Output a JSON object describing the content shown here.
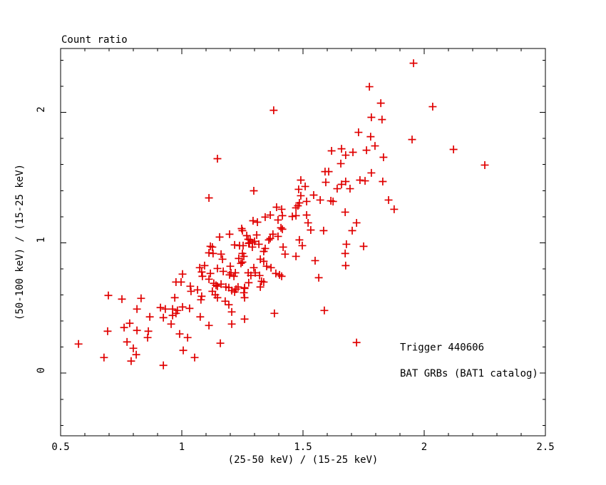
{
  "figure": {
    "title": "Count ratio"
  },
  "chart_data": {
    "type": "scatter",
    "title": "Count ratio",
    "xlabel": "(25-50 keV) / (15-25 keV)",
    "ylabel": "(50-100 keV) / (15-25 keV)",
    "xlim": [
      0.5,
      2.5
    ],
    "ylim": [
      -0.48,
      2.49
    ],
    "grid": false,
    "frame_color": "#000000",
    "x_major_ticks": {
      "values": [
        0.5,
        1,
        1.5,
        2,
        2.5
      ],
      "labels": [
        "0.5",
        "1",
        "1.5",
        "2",
        "2.5"
      ]
    },
    "x_minor_step": 0.1,
    "y_major_ticks": {
      "values": [
        0,
        1,
        2
      ],
      "labels": [
        "0",
        "1",
        "2"
      ]
    },
    "y_minor_step": 0.2,
    "marker": {
      "symbol": "plus",
      "size": 11,
      "color": "#e00000"
    },
    "series": [
      {
        "name": "count-ratio-points",
        "color": "#e00000",
        "points": [
          [
            1.147,
            1.645
          ],
          [
            1.774,
            2.197
          ],
          [
            1.379,
            2.016
          ],
          [
            1.821,
            2.071
          ],
          [
            1.782,
            1.962
          ],
          [
            1.826,
            1.945
          ],
          [
            1.729,
            1.847
          ],
          [
            1.779,
            1.814
          ],
          [
            1.797,
            1.743
          ],
          [
            1.618,
            1.705
          ],
          [
            1.659,
            1.721
          ],
          [
            1.676,
            1.672
          ],
          [
            1.706,
            1.694
          ],
          [
            1.762,
            1.71
          ],
          [
            1.832,
            1.656
          ],
          [
            1.656,
            1.607
          ],
          [
            1.591,
            1.546
          ],
          [
            1.606,
            1.546
          ],
          [
            1.782,
            1.536
          ],
          [
            1.956,
            2.377
          ],
          [
            2.035,
            2.044
          ],
          [
            1.95,
            1.792
          ],
          [
            2.121,
            1.716
          ],
          [
            2.25,
            1.596
          ],
          [
            1.853,
            1.328
          ],
          [
            1.876,
            1.257
          ],
          [
            1.491,
            1.481
          ],
          [
            1.509,
            1.432
          ],
          [
            1.594,
            1.464
          ],
          [
            1.641,
            1.415
          ],
          [
            1.659,
            1.448
          ],
          [
            1.676,
            1.47
          ],
          [
            1.694,
            1.415
          ],
          [
            1.735,
            1.481
          ],
          [
            1.756,
            1.475
          ],
          [
            1.829,
            1.47
          ],
          [
            1.297,
            1.399
          ],
          [
            1.482,
            1.41
          ],
          [
            1.491,
            1.361
          ],
          [
            1.515,
            1.317
          ],
          [
            1.544,
            1.366
          ],
          [
            1.571,
            1.328
          ],
          [
            1.615,
            1.322
          ],
          [
            1.624,
            1.317
          ],
          [
            1.485,
            1.306
          ],
          [
            1.391,
            1.273
          ],
          [
            1.412,
            1.257
          ],
          [
            1.471,
            1.268
          ],
          [
            1.479,
            1.284
          ],
          [
            1.674,
            1.235
          ],
          [
            1.365,
            1.213
          ],
          [
            1.397,
            1.175
          ],
          [
            1.415,
            1.208
          ],
          [
            1.456,
            1.202
          ],
          [
            1.471,
            1.208
          ],
          [
            1.294,
            1.169
          ],
          [
            1.312,
            1.158
          ],
          [
            1.344,
            1.197
          ],
          [
            1.515,
            1.213
          ],
          [
            1.521,
            1.153
          ],
          [
            1.721,
            1.153
          ],
          [
            1.247,
            1.109
          ],
          [
            1.197,
            1.066
          ],
          [
            1.268,
            1.055
          ],
          [
            1.282,
            1.022
          ],
          [
            1.3,
            1.011
          ],
          [
            1.309,
            1.06
          ],
          [
            1.25,
            1.093
          ],
          [
            1.274,
            1.027
          ],
          [
            1.279,
            1.0
          ],
          [
            1.291,
            1.0
          ],
          [
            1.318,
            0.989
          ],
          [
            1.409,
            1.115
          ],
          [
            1.415,
            1.104
          ],
          [
            1.376,
            1.066
          ],
          [
            1.397,
            1.049
          ],
          [
            1.532,
            1.098
          ],
          [
            1.585,
            1.093
          ],
          [
            1.703,
            1.093
          ],
          [
            1.218,
            0.984
          ],
          [
            1.238,
            0.978
          ],
          [
            1.253,
            0.978
          ],
          [
            1.276,
            0.995
          ],
          [
            1.291,
            0.967
          ],
          [
            1.344,
            0.956
          ],
          [
            1.359,
            1.022
          ],
          [
            1.365,
            1.033
          ],
          [
            1.418,
            0.967
          ],
          [
            1.485,
            1.022
          ],
          [
            1.497,
            0.978
          ],
          [
            1.679,
            0.989
          ],
          [
            1.75,
            0.973
          ],
          [
            1.112,
            1.344
          ],
          [
            1.156,
            1.044
          ],
          [
            1.126,
            0.967
          ],
          [
            1.118,
            0.973
          ],
          [
            1.112,
            0.923
          ],
          [
            1.162,
            0.913
          ],
          [
            1.129,
            0.918
          ],
          [
            1.168,
            0.874
          ],
          [
            1.25,
            0.918
          ],
          [
            1.256,
            0.896
          ],
          [
            1.235,
            0.88
          ],
          [
            1.25,
            0.852
          ],
          [
            1.244,
            0.842
          ],
          [
            1.324,
            0.874
          ],
          [
            1.338,
            0.934
          ],
          [
            1.338,
            0.858
          ],
          [
            1.35,
            0.82
          ],
          [
            1.368,
            0.809
          ],
          [
            1.426,
            0.913
          ],
          [
            1.471,
            0.896
          ],
          [
            1.55,
            0.863
          ],
          [
            1.674,
            0.918
          ],
          [
            1.676,
            0.825
          ],
          [
            1.074,
            0.809
          ],
          [
            1.094,
            0.825
          ],
          [
            1.147,
            0.803
          ],
          [
            1.171,
            0.781
          ],
          [
            1.2,
            0.82
          ],
          [
            1.112,
            0.721
          ],
          [
            1.118,
            0.765
          ],
          [
            1.085,
            0.743
          ],
          [
            1.082,
            0.776
          ],
          [
            1.297,
            0.809
          ],
          [
            1.303,
            0.77
          ],
          [
            1.274,
            0.77
          ],
          [
            1.221,
            0.77
          ],
          [
            1.203,
            0.77
          ],
          [
            1.197,
            0.754
          ],
          [
            1.215,
            0.743
          ],
          [
            1.285,
            0.749
          ],
          [
            1.321,
            0.749
          ],
          [
            1.329,
            0.705
          ],
          [
            1.276,
            0.694
          ],
          [
            1.565,
            0.732
          ],
          [
            1.388,
            0.765
          ],
          [
            1.403,
            0.754
          ],
          [
            1.412,
            0.743
          ],
          [
            1.003,
            0.76
          ],
          [
            0.976,
            0.699
          ],
          [
            0.997,
            0.699
          ],
          [
            1.035,
            0.667
          ],
          [
            1.065,
            0.639
          ],
          [
            1.038,
            0.628
          ],
          [
            1.082,
            0.59
          ],
          [
            1.132,
            0.689
          ],
          [
            1.141,
            0.674
          ],
          [
            1.147,
            0.667
          ],
          [
            1.126,
            0.628
          ],
          [
            1.147,
            0.579
          ],
          [
            1.138,
            0.601
          ],
          [
            1.162,
            0.683
          ],
          [
            1.182,
            0.661
          ],
          [
            1.194,
            0.656
          ],
          [
            1.224,
            0.645
          ],
          [
            1.259,
            0.656
          ],
          [
            1.206,
            0.634
          ],
          [
            1.218,
            0.623
          ],
          [
            1.232,
            0.661
          ],
          [
            1.256,
            0.617
          ],
          [
            1.259,
            0.65
          ],
          [
            1.259,
            0.579
          ],
          [
            1.324,
            0.661
          ],
          [
            1.338,
            0.699
          ],
          [
            1.179,
            0.552
          ],
          [
            1.194,
            0.525
          ],
          [
            0.697,
            0.596
          ],
          [
            0.753,
            0.568
          ],
          [
            0.832,
            0.574
          ],
          [
            0.971,
            0.579
          ],
          [
            1.079,
            0.563
          ],
          [
            1.206,
            0.47
          ],
          [
            1.259,
            0.415
          ],
          [
            1.206,
            0.377
          ],
          [
            1.382,
            0.459
          ],
          [
            1.588,
            0.481
          ],
          [
            1.721,
            0.235
          ],
          [
            0.815,
            0.492
          ],
          [
            0.912,
            0.503
          ],
          [
            0.932,
            0.492
          ],
          [
            0.962,
            0.492
          ],
          [
            0.982,
            0.481
          ],
          [
            1.003,
            0.508
          ],
          [
            1.032,
            0.497
          ],
          [
            0.868,
            0.432
          ],
          [
            0.924,
            0.426
          ],
          [
            0.962,
            0.443
          ],
          [
            0.976,
            0.459
          ],
          [
            1.076,
            0.432
          ],
          [
            0.956,
            0.377
          ],
          [
            0.762,
            0.35
          ],
          [
            0.785,
            0.383
          ],
          [
            0.815,
            0.328
          ],
          [
            1.112,
            0.366
          ],
          [
            0.694,
            0.322
          ],
          [
            0.862,
            0.322
          ],
          [
            0.859,
            0.273
          ],
          [
            0.991,
            0.301
          ],
          [
            1.024,
            0.273
          ],
          [
            0.574,
            0.224
          ],
          [
            0.774,
            0.24
          ],
          [
            0.8,
            0.191
          ],
          [
            0.812,
            0.142
          ],
          [
            1.006,
            0.175
          ],
          [
            0.679,
            0.12
          ],
          [
            0.791,
            0.093
          ],
          [
            1.053,
            0.12
          ],
          [
            1.159,
            0.23
          ],
          [
            0.924,
            0.06
          ]
        ]
      }
    ],
    "annotations": [
      {
        "text": "Trigger 440606",
        "color": "#e00000",
        "x": 1.9,
        "y": 0.2
      },
      {
        "text": "BAT GRBs (BAT1 catalog)",
        "color": "#0000cd",
        "x": 1.9,
        "y": 0.0
      }
    ],
    "legend_position": "inside-bottom-right"
  }
}
